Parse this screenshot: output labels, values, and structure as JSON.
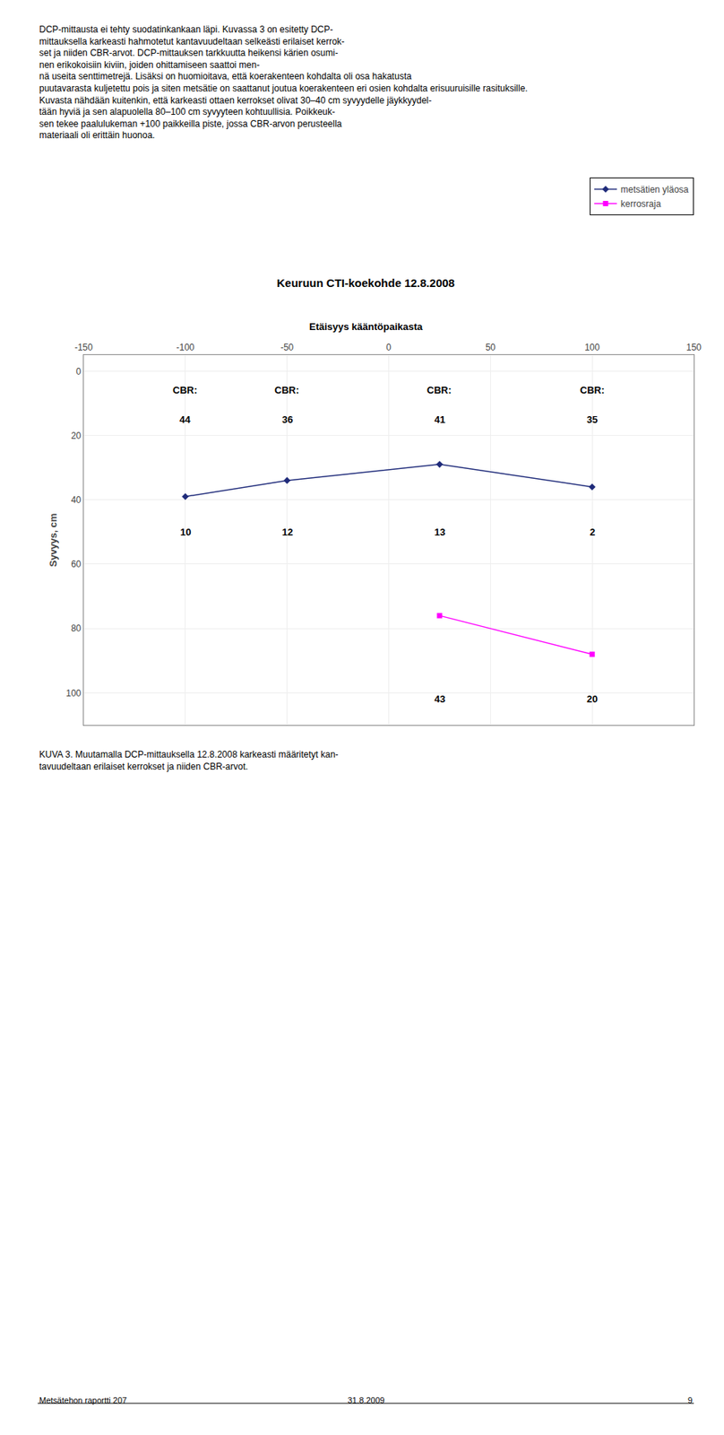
{
  "chart_data": {
    "type": "line",
    "title": "Keuruun CTI-koekohde 12.8.2008",
    "subtitle": "Etäisyys kääntöpaikasta",
    "ylabel": "Syvyys, cm",
    "xlim": [
      -150,
      150
    ],
    "ylim": [
      110,
      -5
    ],
    "xticks": [
      -150,
      -100,
      -50,
      0,
      50,
      100,
      150
    ],
    "yticks": [
      0,
      20,
      40,
      60,
      80,
      100
    ],
    "grid": true,
    "legend": "upper right",
    "series": [
      {
        "name": "metsätien yläosa",
        "color": "#1f2b7a",
        "marker": "diamond",
        "x": [
          -100,
          -50,
          25,
          100
        ],
        "values": [
          39,
          34,
          29,
          36
        ]
      },
      {
        "name": "kerrosraja",
        "color": "#ff00ff",
        "marker": "square",
        "x": [
          25,
          100
        ],
        "values": [
          76,
          88
        ]
      }
    ],
    "annotations": [
      {
        "x": -100,
        "y": 6,
        "text": "CBR:"
      },
      {
        "x": -100,
        "y": 15,
        "text": "44"
      },
      {
        "x": -100,
        "y": 50,
        "text": "10"
      },
      {
        "x": -50,
        "y": 6,
        "text": "CBR:"
      },
      {
        "x": -50,
        "y": 15,
        "text": "36"
      },
      {
        "x": -50,
        "y": 50,
        "text": "12"
      },
      {
        "x": 25,
        "y": 6,
        "text": "CBR:"
      },
      {
        "x": 25,
        "y": 15,
        "text": "41"
      },
      {
        "x": 25,
        "y": 50,
        "text": "13"
      },
      {
        "x": 100,
        "y": 6,
        "text": "CBR:"
      },
      {
        "x": 100,
        "y": 15,
        "text": "35"
      },
      {
        "x": 100,
        "y": 50,
        "text": "2"
      },
      {
        "x": 25,
        "y": 102,
        "text": "43"
      },
      {
        "x": 100,
        "y": 102,
        "text": "20"
      }
    ],
    "text_lines": [
      "DCP-mittausta ei tehty suodatinkankaan läpi. Kuvassa 3 on esitetty DCP-",
      "mittauksella karkeasti hahmotetut kantavuudeltaan selkeästi erilaiset kerrok-",
      "set ja niiden CBR-arvot. DCP-mittauksen tarkkuutta heikensi kärien osumi-",
      "nen erikokoisiin kiviin, joiden ohittamiseen saattoi men-",
      "nä useita senttimetrejä. Lisäksi on huomioitava, että koerakenteen kohdalta oli osa hakatusta",
      "puutavarasta kuljetettu pois ja siten metsätie on saattanut joutua koerakenteen eri osien kohdalta erisuuruisille rasituksille.",
      "Kuvasta nähdään kuitenkin, että karkeasti ottaen kerrokset olivat 30–40 cm syvyydelle jäykkyydel-",
      "tään hyviä ja sen alapuolella 80–100 cm syvyyteen kohtuullisia. Poikkeuk-",
      "sen tekee paalulukeman +100 paikkeilla piste, jossa CBR-arvon perusteella",
      "materiaali oli erittäin huonoa."
    ],
    "caption_lines": [
      "KUVA 3. Muutamalla DCP-mittauksella 12.8.2008 karkeasti määritetyt kan-",
      "tavuudeltaan erilaiset kerrokset ja niiden CBR-arvot."
    ],
    "footer_left": "Metsätehon raportti 207",
    "footer_center": "31.8.2009",
    "footer_right": "9"
  }
}
